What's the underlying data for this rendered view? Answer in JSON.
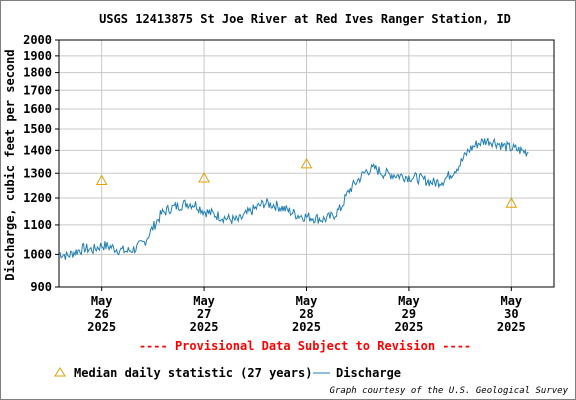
{
  "chart_data": {
    "type": "line",
    "title": "USGS 12413875 St Joe River at Red Ives Ranger Station, ID",
    "ylabel": "Discharge, cubic feet per second",
    "ylim": [
      900,
      2000
    ],
    "y_scale": "log",
    "y_ticks": [
      900,
      1000,
      1100,
      1200,
      1300,
      1400,
      1500,
      1600,
      1700,
      1800,
      1900,
      2000
    ],
    "x_ticks": [
      {
        "month": "May",
        "day": "26",
        "year": "2025",
        "date": "2025-05-26"
      },
      {
        "month": "May",
        "day": "27",
        "year": "2025",
        "date": "2025-05-27"
      },
      {
        "month": "May",
        "day": "28",
        "year": "2025",
        "date": "2025-05-28"
      },
      {
        "month": "May",
        "day": "29",
        "year": "2025",
        "date": "2025-05-29"
      },
      {
        "month": "May",
        "day": "30",
        "year": "2025",
        "date": "2025-05-30"
      }
    ],
    "xlim": [
      "2025-05-25T14:00",
      "2025-05-30T10:00"
    ],
    "grid": true,
    "series": [
      {
        "name": "Discharge",
        "color": "#1f7fb4",
        "x": [
          "2025-05-25T14:00",
          "2025-05-25T16:00",
          "2025-05-25T18:00",
          "2025-05-25T20:00",
          "2025-05-25T22:00",
          "2025-05-26T00:00",
          "2025-05-26T02:00",
          "2025-05-26T04:00",
          "2025-05-26T06:00",
          "2025-05-26T08:00",
          "2025-05-26T10:00",
          "2025-05-26T12:00",
          "2025-05-26T14:00",
          "2025-05-26T16:00",
          "2025-05-26T18:00",
          "2025-05-26T20:00",
          "2025-05-26T22:00",
          "2025-05-27T00:00",
          "2025-05-27T02:00",
          "2025-05-27T04:00",
          "2025-05-27T06:00",
          "2025-05-27T08:00",
          "2025-05-27T10:00",
          "2025-05-27T12:00",
          "2025-05-27T14:00",
          "2025-05-27T16:00",
          "2025-05-27T18:00",
          "2025-05-27T20:00",
          "2025-05-27T22:00",
          "2025-05-28T00:00",
          "2025-05-28T02:00",
          "2025-05-28T04:00",
          "2025-05-28T06:00",
          "2025-05-28T08:00",
          "2025-05-28T10:00",
          "2025-05-28T12:00",
          "2025-05-28T14:00",
          "2025-05-28T16:00",
          "2025-05-28T18:00",
          "2025-05-28T20:00",
          "2025-05-28T22:00",
          "2025-05-29T00:00",
          "2025-05-29T02:00",
          "2025-05-29T04:00",
          "2025-05-29T06:00",
          "2025-05-29T08:00",
          "2025-05-29T10:00",
          "2025-05-29T12:00",
          "2025-05-29T14:00",
          "2025-05-29T16:00",
          "2025-05-29T18:00",
          "2025-05-29T20:00",
          "2025-05-29T22:00",
          "2025-05-30T00:00",
          "2025-05-30T02:00",
          "2025-05-30T04:00"
        ],
        "values": [
          1005,
          995,
          1010,
          1020,
          1015,
          1030,
          1025,
          1015,
          1010,
          1020,
          1040,
          1090,
          1140,
          1160,
          1170,
          1180,
          1175,
          1150,
          1140,
          1130,
          1120,
          1115,
          1140,
          1160,
          1180,
          1175,
          1165,
          1150,
          1135,
          1130,
          1125,
          1120,
          1130,
          1160,
          1230,
          1270,
          1310,
          1320,
          1300,
          1295,
          1290,
          1285,
          1280,
          1270,
          1260,
          1270,
          1300,
          1340,
          1400,
          1430,
          1445,
          1440,
          1420,
          1410,
          1400,
          1390
        ]
      },
      {
        "name": "Median daily statistic (27 years)",
        "color": "#e6a100",
        "marker": "triangle",
        "x": [
          "2025-05-26T00:00",
          "2025-05-27T00:00",
          "2025-05-28T00:00",
          "2025-05-29T00:00",
          "2025-05-30T00:00"
        ],
        "values": [
          1270,
          1280,
          1340,
          null,
          1180
        ]
      }
    ]
  },
  "provisional_notice": "---- Provisional Data Subject to Revision ----",
  "legend": {
    "median_label": "Median daily statistic (27 years)",
    "discharge_label": "Discharge"
  },
  "courtesy": "Graph courtesy of the U.S. Geological Survey"
}
